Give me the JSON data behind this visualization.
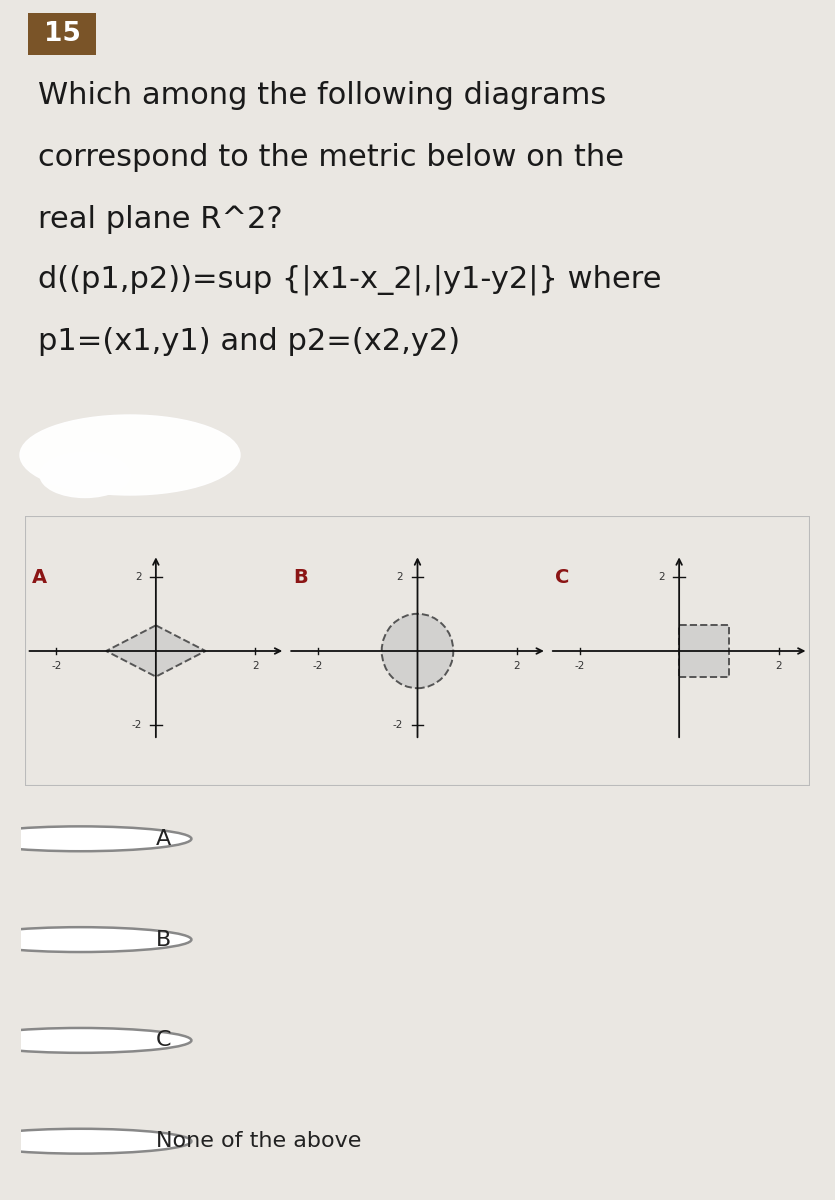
{
  "bg_color": "#eae7e2",
  "question_bg": "#eae7e2",
  "number_bg": "#7a5428",
  "number_text": "15",
  "number_text_color": "#ffffff",
  "question_lines": [
    "Which among the following diagrams",
    "correspond to the metric below on the",
    "real plane R^2?",
    "d((p1,p2))=sup {|x1-x_2|,|y1-y2|} where",
    "p1=(x1,y1) and p2=(x2,y2)"
  ],
  "diagram_bg": "#ffffff",
  "label_color": "#8b1515",
  "shape_fill": "#c0c0c0",
  "shape_alpha": 0.55,
  "axis_color": "#111111",
  "dash_color": "#555555",
  "options": [
    "A",
    "B",
    "C",
    "None of the above"
  ],
  "option_bg": "#ebebeb",
  "option_text_color": "#222222",
  "circle_edge_color": "#888888",
  "blob_color": "#ffffff"
}
